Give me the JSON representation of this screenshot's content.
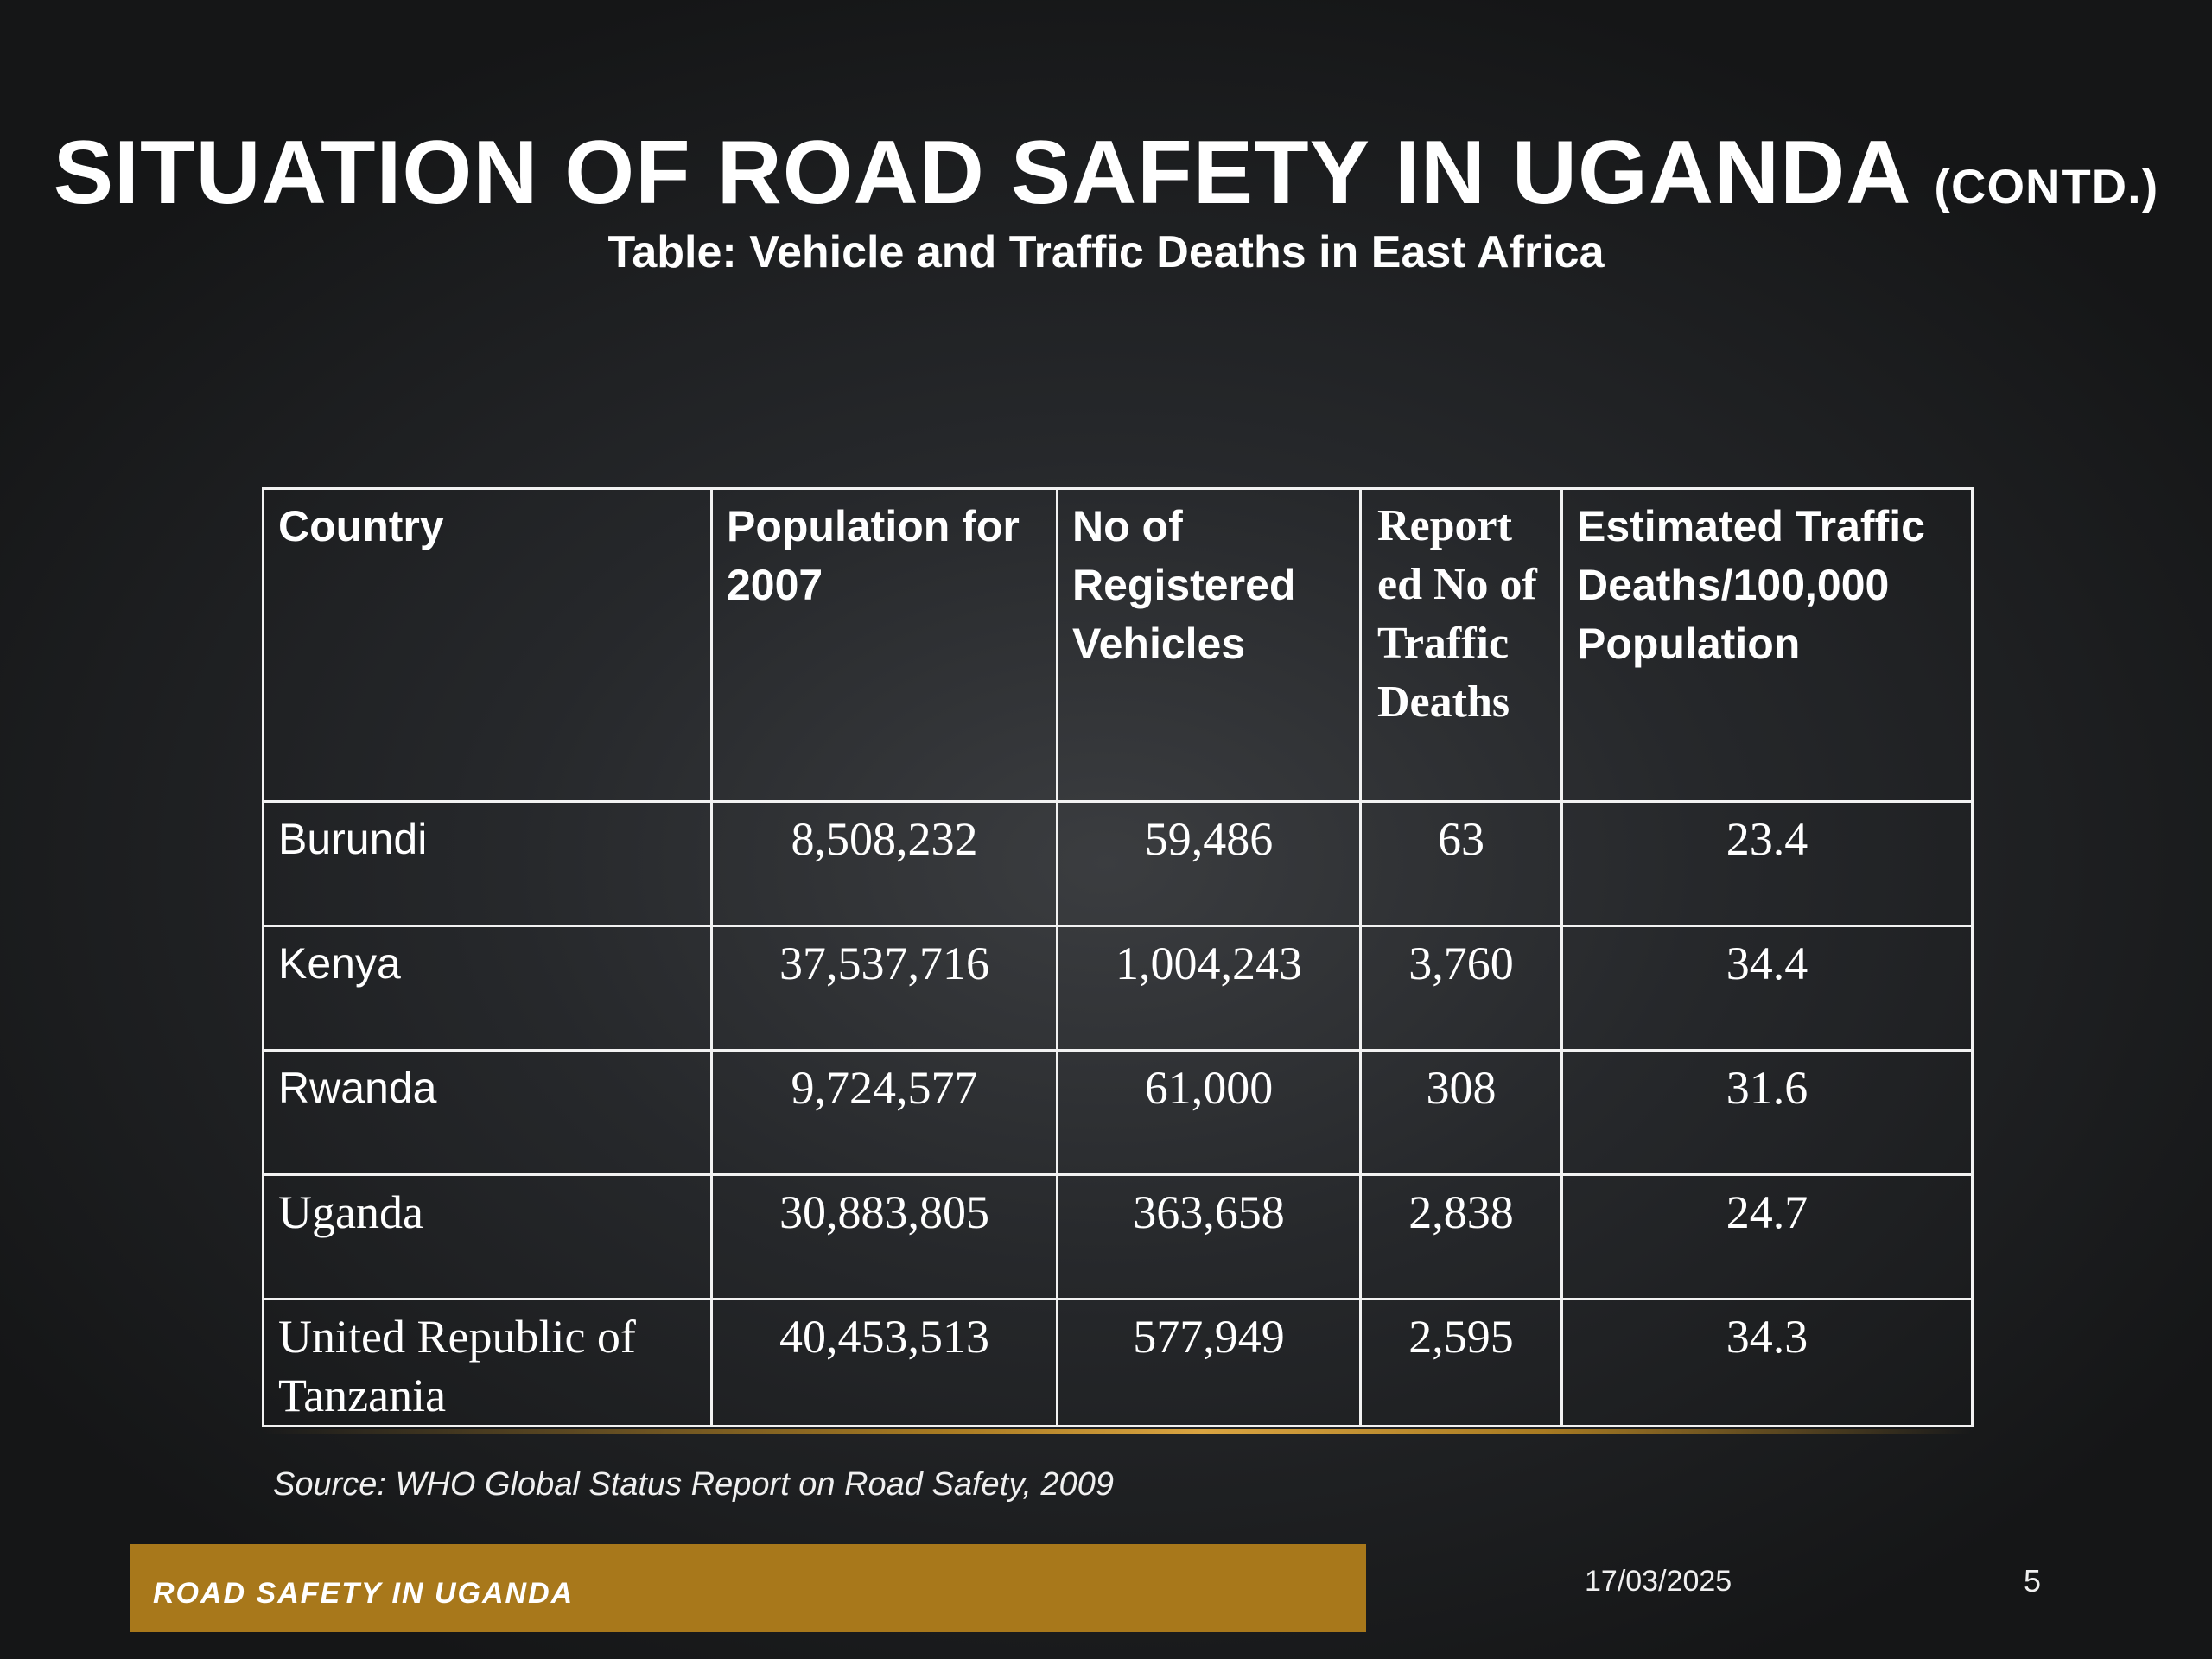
{
  "slide": {
    "title": "SITUATION OF ROAD SAFETY IN UGANDA",
    "title_suffix": "(CONTD.)",
    "subtitle": "Table: Vehicle and Traffic Deaths in East Africa"
  },
  "table": {
    "headers": [
      "Country",
      "Population for 2007",
      "No of Registered Vehicles",
      "Report ed No of Traffic Deaths",
      "Estimated Traffic Deaths/100,000 Population"
    ],
    "rows": [
      {
        "country": "Burundi",
        "population": "8,508,232",
        "vehicles": "59,486",
        "deaths": "63",
        "rate": "23.4"
      },
      {
        "country": "Kenya",
        "population": "37,537,716",
        "vehicles": "1,004,243",
        "deaths": "3,760",
        "rate": "34.4"
      },
      {
        "country": "Rwanda",
        "population": "9,724,577",
        "vehicles": "61,000",
        "deaths": "308",
        "rate": "31.6"
      },
      {
        "country": "Uganda",
        "population": "30,883,805",
        "vehicles": "363,658",
        "deaths": "2,838",
        "rate": "24.7"
      },
      {
        "country": "United Republic of Tanzania",
        "population": "40,453,513",
        "vehicles": "577,949",
        "deaths": "2,595",
        "rate": "34.3"
      }
    ]
  },
  "source": "Source: WHO Global Status Report on Road Safety, 2009",
  "footer": {
    "label": "ROAD SAFETY IN UGANDA",
    "date": "17/03/2025",
    "page_number": "5"
  },
  "colors": {
    "background": "#26282b",
    "accent_gold": "#a8781b",
    "text": "#ffffff"
  }
}
